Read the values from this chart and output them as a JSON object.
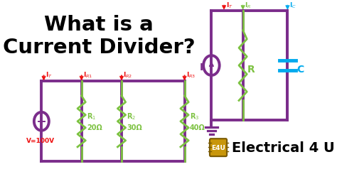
{
  "bg_color": "#ffffff",
  "title_line1": "What is a",
  "title_line2": "Current Divider?",
  "title_color": "#000000",
  "title_fontsize": 21,
  "purple": "#7B2D8B",
  "green": "#7DC242",
  "red": "#EE1111",
  "cyan": "#00AAEE",
  "gold_face": "#C8960A",
  "gold_edge": "#7A5A00",
  "brand_text": "Electrical 4 U",
  "brand_fontsize": 14,
  "lw_main": 2.8,
  "lw_res": 2.0
}
